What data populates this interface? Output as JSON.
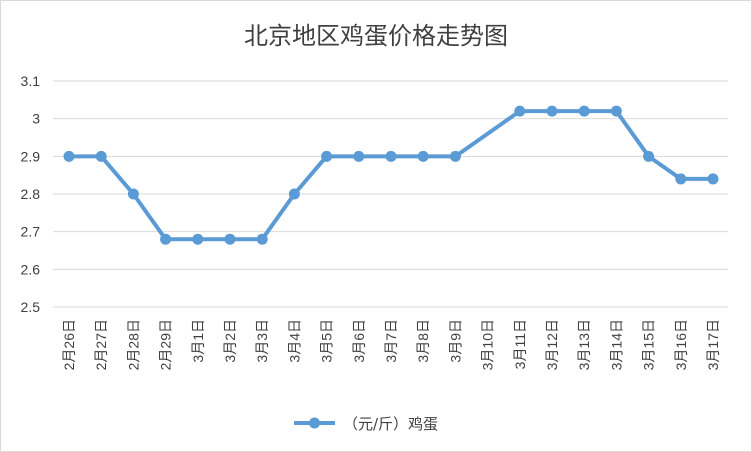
{
  "chart_data": {
    "type": "line",
    "title": "北京地区鸡蛋价格走势图",
    "categories": [
      "2月26日",
      "2月27日",
      "2月28日",
      "2月29日",
      "3月1日",
      "3月2日",
      "3月3日",
      "3月4日",
      "3月5日",
      "3月6日",
      "3月7日",
      "3月8日",
      "3月9日",
      "3月10日",
      "3月11日",
      "3月12日",
      "3月13日",
      "3月14日",
      "3月15日",
      "3月16日",
      "3月17日"
    ],
    "series": [
      {
        "name": "（元/斤）鸡蛋",
        "values": [
          2.9,
          2.9,
          2.8,
          2.68,
          2.68,
          2.68,
          2.68,
          2.8,
          2.9,
          2.9,
          2.9,
          2.9,
          2.9,
          null,
          3.02,
          3.02,
          3.02,
          3.02,
          2.9,
          2.84,
          2.84
        ],
        "color": "#5b9bd5"
      }
    ],
    "ylim": [
      2.5,
      3.1
    ],
    "yticks": [
      "2.5",
      "2.6",
      "2.7",
      "2.8",
      "2.9",
      "3",
      "3.1"
    ],
    "grid": true,
    "legend_position": "bottom",
    "connect_gaps": true
  }
}
